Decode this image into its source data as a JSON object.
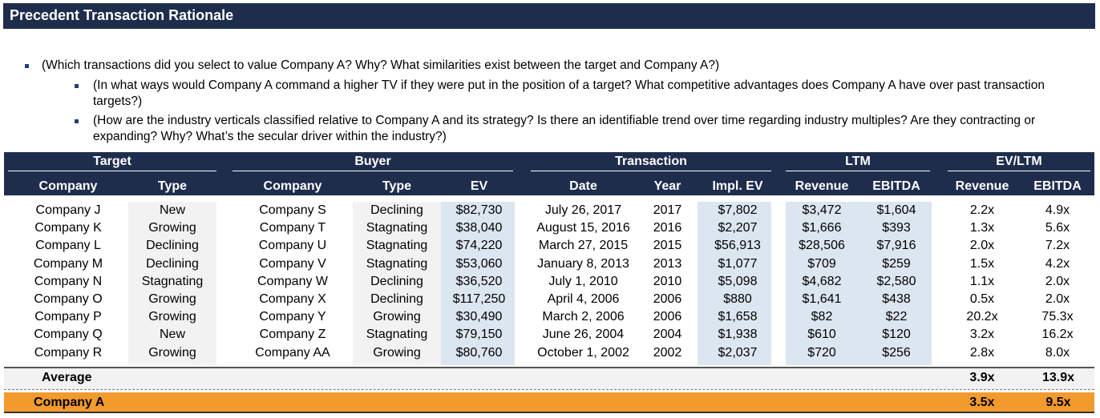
{
  "title": "Precedent Transaction Rationale",
  "bullets": [
    "(Which transactions did you select to value Company A? Why? What similarities exist between the target and Company A?)",
    "(In what ways would Company A command a higher TV if they were put in the position of a target? What competitive advantages does Company A have over past transaction targets?)",
    "(How are the industry verticals classified relative to Company A and its strategy? Is there an identifiable trend over time regarding industry multiples? Are they contracting or expanding? Why? What’s the secular driver within the industry?)"
  ],
  "table": {
    "groups": {
      "target": "Target",
      "buyer": "Buyer",
      "transaction": "Transaction",
      "ltm": "LTM",
      "ev_ltm": "EV/LTM"
    },
    "columns": {
      "target_company": "Company",
      "target_type": "Type",
      "buyer_company": "Company",
      "buyer_type": "Type",
      "ev": "EV",
      "date": "Date",
      "year": "Year",
      "impl_ev": "Impl. EV",
      "ltm_revenue": "Revenue",
      "ltm_ebitda": "EBITDA",
      "mult_revenue": "Revenue",
      "mult_ebitda": "EBITDA"
    },
    "rows": [
      {
        "tc": "Company J",
        "tt": "New",
        "bc": "Company S",
        "bt": "Declining",
        "ev": "$82,730",
        "date": "July 26, 2017",
        "year": "2017",
        "iev": "$7,802",
        "rev": "$3,472",
        "ebitda": "$1,604",
        "mrev": "2.2x",
        "mebitda": "4.9x"
      },
      {
        "tc": "Company K",
        "tt": "Growing",
        "bc": "Company T",
        "bt": "Stagnating",
        "ev": "$38,040",
        "date": "August 15, 2016",
        "year": "2016",
        "iev": "$2,207",
        "rev": "$1,666",
        "ebitda": "$393",
        "mrev": "1.3x",
        "mebitda": "5.6x"
      },
      {
        "tc": "Company L",
        "tt": "Declining",
        "bc": "Company U",
        "bt": "Stagnating",
        "ev": "$74,220",
        "date": "March 27, 2015",
        "year": "2015",
        "iev": "$56,913",
        "rev": "$28,506",
        "ebitda": "$7,916",
        "mrev": "2.0x",
        "mebitda": "7.2x"
      },
      {
        "tc": "Company M",
        "tt": "Declining",
        "bc": "Company V",
        "bt": "Stagnating",
        "ev": "$53,060",
        "date": "January 8, 2013",
        "year": "2013",
        "iev": "$1,077",
        "rev": "$709",
        "ebitda": "$259",
        "mrev": "1.5x",
        "mebitda": "4.2x"
      },
      {
        "tc": "Company N",
        "tt": "Stagnating",
        "bc": "Company W",
        "bt": "Declining",
        "ev": "$36,520",
        "date": "July 1, 2010",
        "year": "2010",
        "iev": "$5,098",
        "rev": "$4,682",
        "ebitda": "$2,580",
        "mrev": "1.1x",
        "mebitda": "2.0x"
      },
      {
        "tc": "Company O",
        "tt": "Growing",
        "bc": "Company X",
        "bt": "Declining",
        "ev": "$117,250",
        "date": "April 4, 2006",
        "year": "2006",
        "iev": "$880",
        "rev": "$1,641",
        "ebitda": "$438",
        "mrev": "0.5x",
        "mebitda": "2.0x"
      },
      {
        "tc": "Company P",
        "tt": "Growing",
        "bc": "Company Y",
        "bt": "Growing",
        "ev": "$30,490",
        "date": "March 2, 2006",
        "year": "2006",
        "iev": "$1,658",
        "rev": "$82",
        "ebitda": "$22",
        "mrev": "20.2x",
        "mebitda": "75.3x"
      },
      {
        "tc": "Company Q",
        "tt": "New",
        "bc": "Company Z",
        "bt": "Stagnating",
        "ev": "$79,150",
        "date": "June 26, 2004",
        "year": "2004",
        "iev": "$1,938",
        "rev": "$610",
        "ebitda": "$120",
        "mrev": "3.2x",
        "mebitda": "16.2x"
      },
      {
        "tc": "Company R",
        "tt": "Growing",
        "bc": "Company AA",
        "bt": "Growing",
        "ev": "$80,760",
        "date": "October 1, 2002",
        "year": "2002",
        "iev": "$2,037",
        "rev": "$720",
        "ebitda": "$256",
        "mrev": "2.8x",
        "mebitda": "8.0x"
      }
    ],
    "average": {
      "label": "Average",
      "mrev": "3.9x",
      "mebitda": "13.9x"
    },
    "company_a": {
      "label": "Company A",
      "mrev": "3.5x",
      "mebitda": "9.5x"
    }
  },
  "colors": {
    "header": "#1f2d4d",
    "blue_shade": "#dce6f0",
    "grey_shade": "#f2f2f2",
    "highlight": "#f29a2e"
  }
}
